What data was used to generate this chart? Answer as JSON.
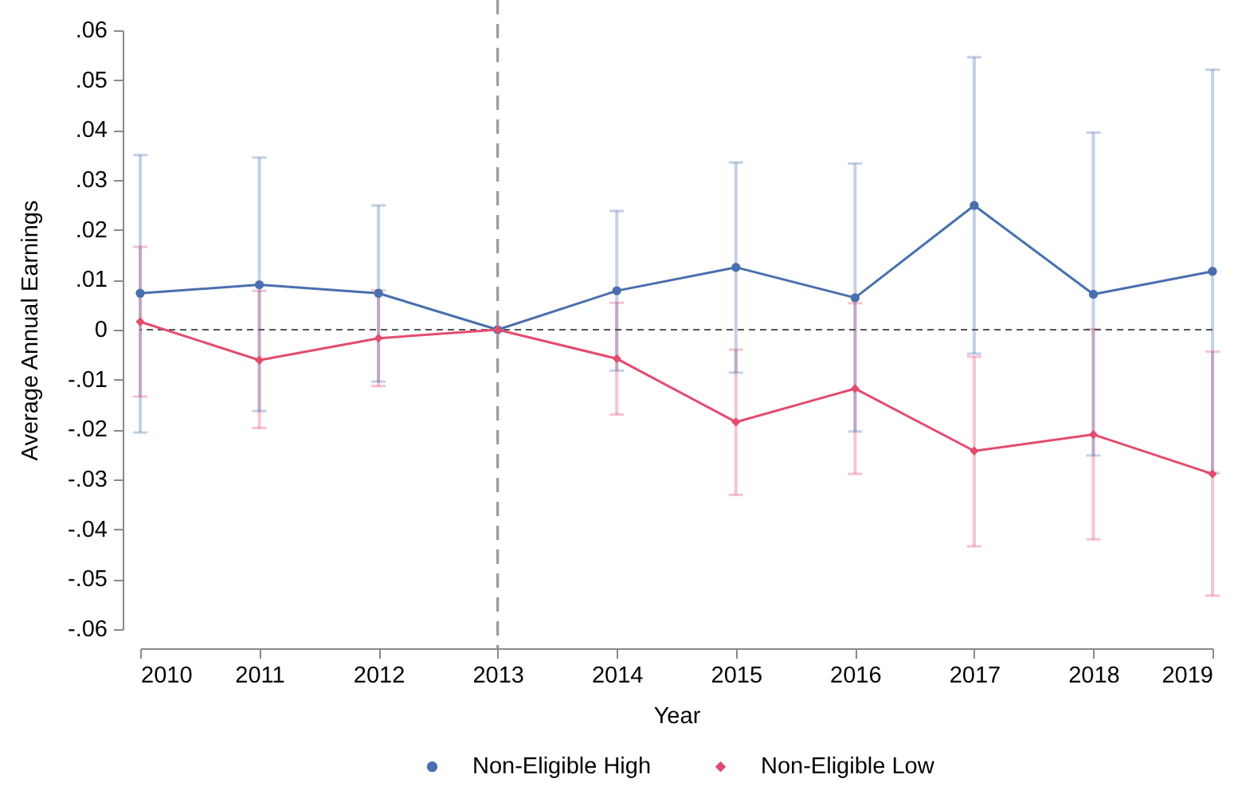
{
  "chart_data": {
    "type": "line",
    "xlabel": "Year",
    "ylabel": "Average Annual Earnings",
    "x": [
      2010,
      2011,
      2012,
      2013,
      2014,
      2015,
      2016,
      2017,
      2018,
      2019
    ],
    "series": [
      {
        "name": "Non-Eligible High",
        "color": "#4a6fae",
        "marker": "circle",
        "values": [
          0.0073,
          0.009,
          0.0073,
          0,
          0.0078,
          0.0125,
          0.0064,
          0.0249,
          0.0071,
          0.0117
        ],
        "errors": [
          [
            -0.0206,
            0.035
          ],
          [
            -0.0163,
            0.0345
          ],
          [
            -0.0104,
            0.0249
          ],
          null,
          [
            -0.0082,
            0.0238
          ],
          [
            -0.0086,
            0.0335
          ],
          [
            -0.0204,
            0.0333
          ],
          [
            -0.0048,
            0.0546
          ],
          [
            -0.0252,
            0.0395
          ],
          [
            -0.0287,
            0.0521
          ]
        ]
      },
      {
        "name": "Non-Eligible Low",
        "color": "#e34c6e",
        "marker": "diamond",
        "values": [
          0.0016,
          -0.0061,
          -0.0017,
          0,
          -0.0058,
          -0.0185,
          -0.0118,
          -0.0243,
          -0.021,
          -0.0289
        ],
        "errors": [
          [
            -0.0134,
            0.0166
          ],
          [
            -0.0197,
            0.0078
          ],
          [
            -0.0113,
            0.0079
          ],
          null,
          [
            -0.017,
            0.0054
          ],
          [
            -0.0331,
            -0.004
          ],
          [
            -0.0289,
            0.0053
          ],
          [
            -0.0434,
            -0.0054
          ],
          [
            -0.042,
            0.0001
          ],
          [
            -0.0533,
            -0.0044
          ]
        ]
      }
    ],
    "xlim": [
      2010,
      2019
    ],
    "xticks": [
      2010,
      2011,
      2012,
      2013,
      2014,
      2015,
      2016,
      2017,
      2018,
      2019
    ],
    "ylim": [
      -0.06,
      0.06
    ],
    "yticks": [
      {
        "value": -0.06,
        "label": "-.06"
      },
      {
        "value": -0.05,
        "label": "-.05"
      },
      {
        "value": -0.04,
        "label": "-.04"
      },
      {
        "value": -0.03,
        "label": "-.03"
      },
      {
        "value": -0.02,
        "label": "-.02"
      },
      {
        "value": -0.01,
        "label": "-.01"
      },
      0,
      {
        "value": 0.01,
        "label": ".01"
      },
      {
        "value": 0.02,
        "label": ".02"
      },
      {
        "value": 0.03,
        "label": ".03"
      },
      {
        "value": 0.04,
        "label": ".04"
      },
      {
        "value": 0.05,
        "label": ".05"
      },
      {
        "value": 0.06,
        "label": ".06"
      }
    ],
    "ref_lines": [
      {
        "axis": "x",
        "value": 2013,
        "color": "#9a9a9a",
        "line_style": "dashed"
      },
      {
        "axis": "y",
        "value": 0,
        "color": "#555555",
        "line_style": "dashed"
      }
    ],
    "legend": "bottom"
  }
}
